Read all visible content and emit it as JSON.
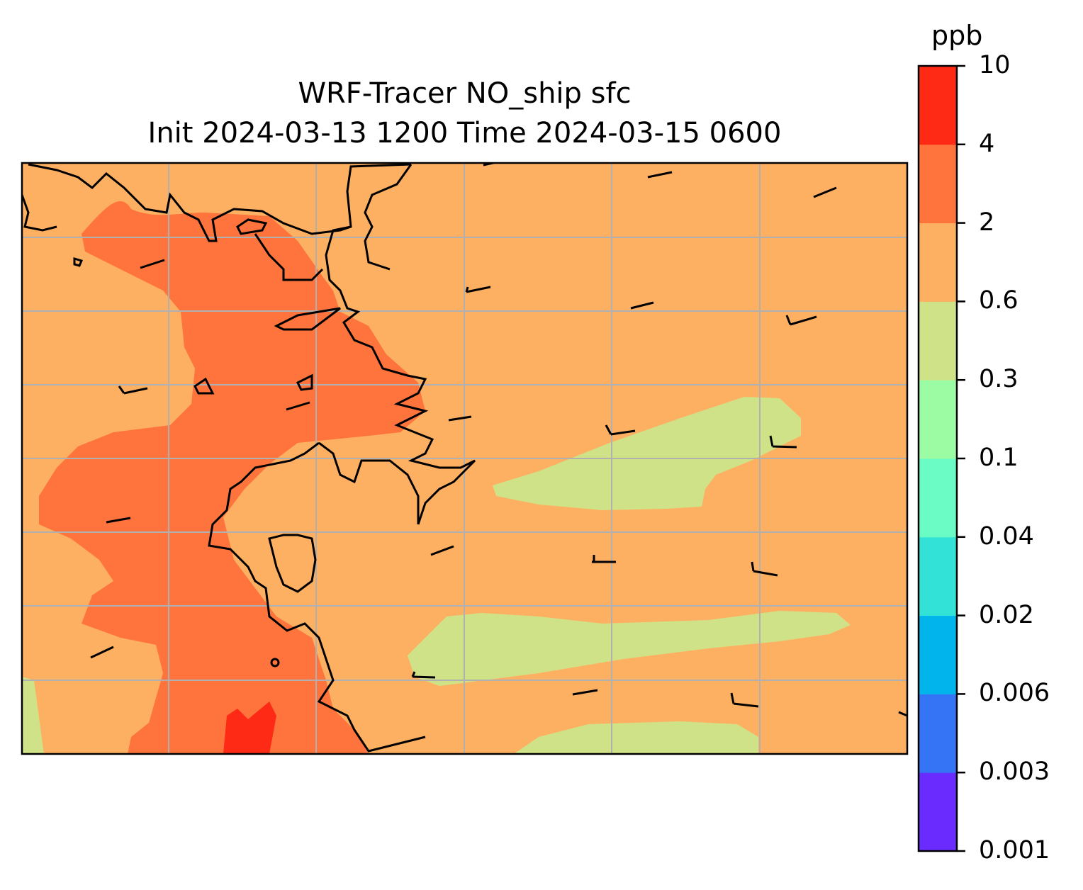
{
  "chart_data": {
    "type": "filled-contour-map",
    "title": "WRF-Tracer NO_ship sfc",
    "subtitle": "Init 2024-03-13 1200 Time 2024-03-15 0600",
    "colorbar": {
      "unit": "ppb",
      "levels": [
        "0.001",
        "0.003",
        "0.006",
        "0.02",
        "0.04",
        "0.1",
        "0.3",
        "0.6",
        "2",
        "4",
        "10"
      ],
      "colors": [
        "#6a2bfe",
        "#3574f4",
        "#02b4ec",
        "#32e2d6",
        "#6afcc4",
        "#9cfca4",
        "#d0e288",
        "#fdb062",
        "#fe743c",
        "#ff2a15"
      ]
    },
    "grid": true,
    "overlays": [
      "coastlines",
      "wind barbs"
    ]
  }
}
